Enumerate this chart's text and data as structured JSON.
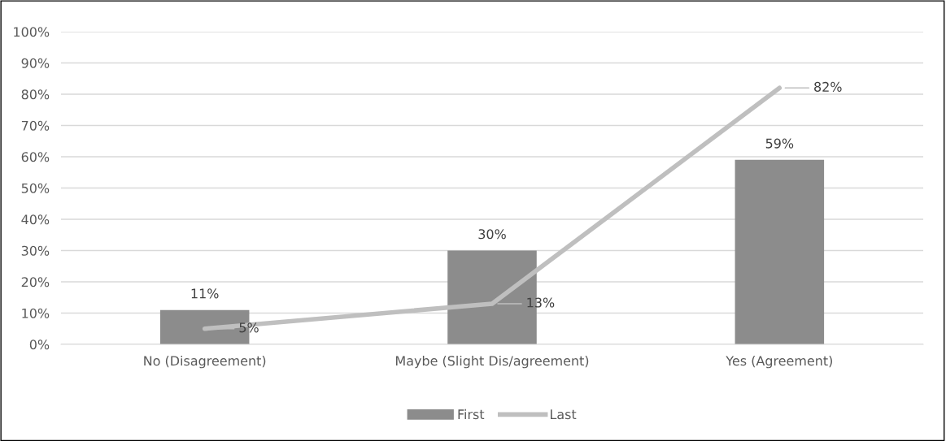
{
  "chart_data": {
    "type": "bar",
    "categories": [
      "No (Disagreement)",
      "Maybe (Slight Dis/agreement)",
      "Yes (Agreement)"
    ],
    "series": [
      {
        "name": "First",
        "color": "#8c8c8c",
        "values": [
          11,
          30,
          59
        ],
        "value_labels": [
          "11%",
          "30%",
          "59%"
        ]
      },
      {
        "name": "Last",
        "type": "line",
        "color": "#bfbfbf",
        "values": [
          5,
          13,
          82
        ],
        "value_labels": [
          "5%",
          "13%",
          "82%"
        ]
      }
    ],
    "ylim": [
      0,
      100
    ],
    "yticks": [
      {
        "value": 0,
        "label": "0%"
      },
      {
        "value": 10,
        "label": "10%"
      },
      {
        "value": 20,
        "label": "20%"
      },
      {
        "value": 30,
        "label": "30%"
      },
      {
        "value": 40,
        "label": "40%"
      },
      {
        "value": 50,
        "label": "50%"
      },
      {
        "value": 60,
        "label": "60%"
      },
      {
        "value": 70,
        "label": "70%"
      },
      {
        "value": 80,
        "label": "80%"
      },
      {
        "value": 90,
        "label": "90%"
      },
      {
        "value": 100,
        "label": "100%"
      }
    ],
    "grid": "y",
    "legend": "bottom",
    "marker": "none",
    "line_style": "solid"
  }
}
